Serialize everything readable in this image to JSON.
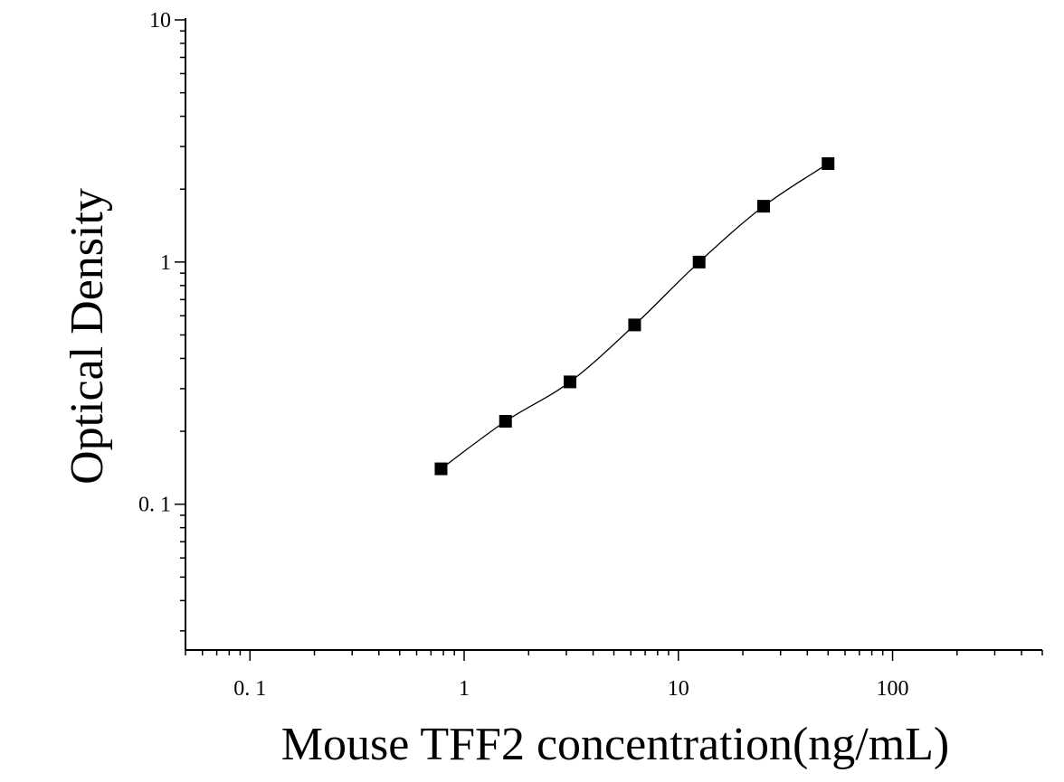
{
  "chart_data": {
    "type": "scatter",
    "title": "",
    "xlabel": "Mouse TFF2 concentration(ng/mL)",
    "ylabel": "Optical Density",
    "x_scale": "log",
    "y_scale": "log",
    "xlim": [
      0.05,
      500
    ],
    "ylim": [
      0.025,
      10
    ],
    "x_ticks": [
      {
        "value": 0.1,
        "label": "0. 1"
      },
      {
        "value": 1,
        "label": "1"
      },
      {
        "value": 10,
        "label": "10"
      },
      {
        "value": 100,
        "label": "100"
      }
    ],
    "y_ticks": [
      {
        "value": 0.1,
        "label": "0. 1"
      },
      {
        "value": 1,
        "label": "1"
      },
      {
        "value": 10,
        "label": "10"
      }
    ],
    "grid": false,
    "legend": "none",
    "marker": "square",
    "color": "#000000",
    "points": [
      {
        "x": 0.78,
        "y": 0.14
      },
      {
        "x": 1.56,
        "y": 0.22
      },
      {
        "x": 3.12,
        "y": 0.32
      },
      {
        "x": 6.25,
        "y": 0.55
      },
      {
        "x": 12.5,
        "y": 1.0
      },
      {
        "x": 25,
        "y": 1.7
      },
      {
        "x": 50,
        "y": 2.55
      }
    ],
    "fit_curve": true
  }
}
